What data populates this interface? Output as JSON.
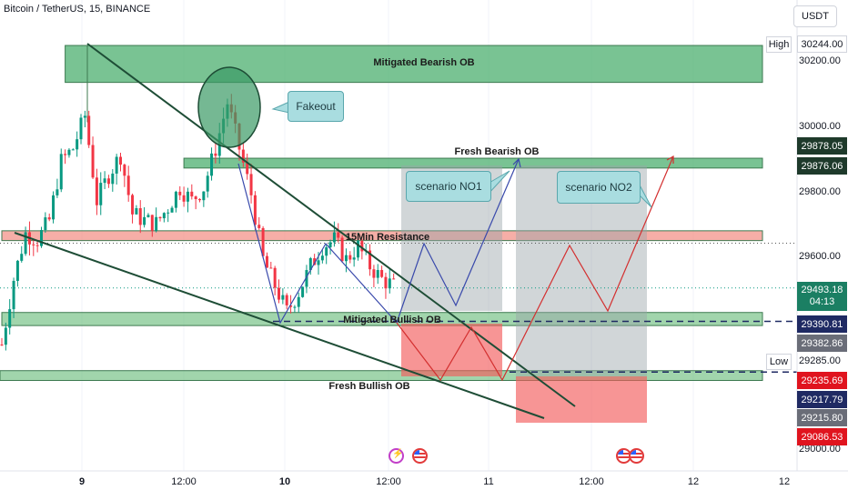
{
  "symbol_title": "Bitcoin / TetherUS, 15, BINANCE",
  "currency_button": "USDT",
  "colors": {
    "candle_up": "#089981",
    "candle_down": "#f23645",
    "bearish_zone": "#4caf6f",
    "resistance_zone": "#f28b82",
    "bullish_zone": "#6fbf7f",
    "trendline": "#1e4d36",
    "projection_blue": "#3949ab",
    "projection_red": "#d32f2f"
  },
  "chart_data": {
    "type": "candlestick",
    "title": "Bitcoin / TetherUS, 15, BINANCE",
    "ylim": [
      28980,
      30290
    ],
    "y_ticks": [
      29000,
      29285,
      29600,
      29800,
      30000,
      30200
    ],
    "y_tick_labels": [
      "29000.00",
      "29285.00",
      "29600.00",
      "29800.00",
      "30000.00",
      "30200.00"
    ],
    "x_tick_labels": [
      "9",
      "12:00",
      "10",
      "12:00",
      "11",
      "12:00",
      "12",
      "12"
    ],
    "x_tick_bold": [
      true,
      false,
      true,
      false,
      false,
      false,
      false,
      false
    ],
    "price_path": [
      {
        "t": 0,
        "p": 29320
      },
      {
        "t": 3,
        "p": 29520
      },
      {
        "t": 6,
        "p": 29660
      },
      {
        "t": 9,
        "p": 29640
      },
      {
        "t": 12,
        "p": 29700
      },
      {
        "t": 15,
        "p": 29880
      },
      {
        "t": 18,
        "p": 29920
      },
      {
        "t": 21,
        "p": 30020
      },
      {
        "t": 24,
        "p": 29760
      },
      {
        "t": 27,
        "p": 29840
      },
      {
        "t": 30,
        "p": 29900
      },
      {
        "t": 33,
        "p": 29720
      },
      {
        "t": 36,
        "p": 29700
      },
      {
        "t": 39,
        "p": 29690
      },
      {
        "t": 42,
        "p": 29740
      },
      {
        "t": 45,
        "p": 29800
      },
      {
        "t": 48,
        "p": 29760
      },
      {
        "t": 51,
        "p": 29800
      },
      {
        "t": 54,
        "p": 29920
      },
      {
        "t": 57,
        "p": 30060
      },
      {
        "t": 60,
        "p": 29920
      },
      {
        "t": 63,
        "p": 29780
      },
      {
        "t": 66,
        "p": 29580
      },
      {
        "t": 69,
        "p": 29500
      },
      {
        "t": 72,
        "p": 29420
      },
      {
        "t": 75,
        "p": 29480
      },
      {
        "t": 78,
        "p": 29560
      },
      {
        "t": 81,
        "p": 29620
      },
      {
        "t": 84,
        "p": 29640
      },
      {
        "t": 87,
        "p": 29580
      },
      {
        "t": 90,
        "p": 29620
      },
      {
        "t": 93,
        "p": 29560
      },
      {
        "t": 96,
        "p": 29520
      },
      {
        "t": 99,
        "p": 29500
      }
    ],
    "zones": [
      {
        "label": "Mitigated Bearish OB",
        "top": 30235,
        "bottom": 30122,
        "x_start": 16,
        "x_end": 155
      },
      {
        "label": "Fresh Bearish OB",
        "top": 29890,
        "bottom": 29860,
        "x_start": 46,
        "x_end": 155
      },
      {
        "label": "15Min Resistance",
        "top": 29668,
        "bottom": 29638,
        "x_start": 0,
        "x_end": 155
      },
      {
        "label": "Mitigated Bullish OB",
        "top": 29418,
        "bottom": 29378,
        "x_start": 0,
        "x_end": 155
      },
      {
        "label": "Fresh Bullish OB",
        "top": 29240,
        "bottom": 29210,
        "x_start": -5,
        "x_end": 155
      }
    ],
    "annotations": [
      "Fakeout",
      "scenario NO1",
      "scenario NO2"
    ],
    "price_badges": [
      {
        "value": "30244.00",
        "price": 30244,
        "style": "plain"
      },
      {
        "value": "29878.05",
        "price": 29878.05,
        "style": "dark"
      },
      {
        "value": "29876.06",
        "price": 29876.06,
        "style": "dark"
      },
      {
        "value": "29493.18",
        "price": 29493.18,
        "style": "green",
        "countdown": "04:13"
      },
      {
        "value": "29390.81",
        "price": 29390.81,
        "style": "navy"
      },
      {
        "value": "29382.86",
        "price": 29382.86,
        "style": "gray"
      },
      {
        "value": "29235.69",
        "price": 29235.69,
        "style": "red"
      },
      {
        "value": "29217.79",
        "price": 29217.79,
        "style": "navy"
      },
      {
        "value": "29215.80",
        "price": 29215.8,
        "style": "gray"
      },
      {
        "value": "29086.53",
        "price": 29086.53,
        "style": "red"
      }
    ],
    "side_tags": {
      "high": "High",
      "low": "Low"
    }
  }
}
